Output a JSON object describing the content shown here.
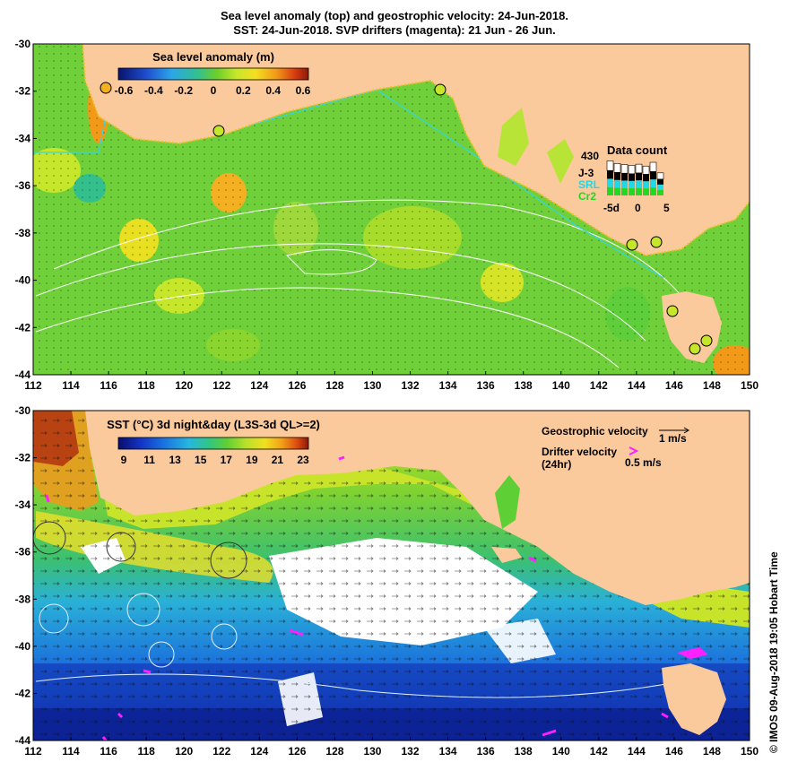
{
  "header": {
    "line1": "Sea level anomaly (top) and geostrophic velocity: 24-Jun-2018.",
    "line2": "SST: 24-Jun-2018. SVP drifters (magenta): 21 Jun - 26 Jun."
  },
  "top_map": {
    "colorbar_title": "Sea level anomaly (m)",
    "colorbar_ticks": [
      "-0.6",
      "-0.4",
      "-0.2",
      "0",
      "0.2",
      "0.4",
      "0.6"
    ],
    "colorbar_colors": [
      "#08136e",
      "#1f4fd0",
      "#2aa6e8",
      "#33c08c",
      "#6dcf2a",
      "#c6e62a",
      "#f4e020",
      "#f29a18",
      "#d83a10",
      "#8a1a06"
    ],
    "data_count": {
      "title": "Data count",
      "max_label": "430",
      "sources": [
        {
          "name": "J-3",
          "color": "#000000"
        },
        {
          "name": "SRL",
          "color": "#22d8e6"
        },
        {
          "name": "Cr2",
          "color": "#23d823"
        }
      ],
      "x_ticks": [
        "-5d",
        "0",
        "5"
      ]
    }
  },
  "bottom_map": {
    "colorbar_title": "SST (°C) 3d night&day (L3S-3d QL>=2)",
    "colorbar_ticks": [
      "9",
      "11",
      "13",
      "15",
      "17",
      "19",
      "21",
      "23"
    ],
    "colorbar_colors": [
      "#080e6c",
      "#1434c4",
      "#1a78e0",
      "#26b6e0",
      "#2fc58a",
      "#5ecf34",
      "#b6e02a",
      "#f2e020",
      "#f2a016",
      "#dc4a10",
      "#8c1a06"
    ],
    "legend": {
      "geo_label": "Geostrophic velocity",
      "geo_scale": "1 m/s",
      "drifter_label": "Drifter velocity",
      "drifter_sub": "(24hr)",
      "drifter_scale": "0.5 m/s"
    }
  },
  "axes": {
    "y_ticks": [
      "-30",
      "-32",
      "-34",
      "-36",
      "-38",
      "-40",
      "-42",
      "-44"
    ],
    "x_ticks": [
      "112",
      "114",
      "116",
      "118",
      "120",
      "122",
      "124",
      "126",
      "128",
      "130",
      "132",
      "134",
      "136",
      "138",
      "140",
      "142",
      "144",
      "146",
      "148",
      "150"
    ],
    "lon_range": [
      112,
      150
    ],
    "lat_range": [
      -44,
      -30
    ]
  },
  "side_label": "© IMOS 09-Aug-2018 19:05 Hobart Time",
  "colors": {
    "land": "#fac99c",
    "ocean_mid": "#6fd03a",
    "magenta": "#ff20ff"
  }
}
